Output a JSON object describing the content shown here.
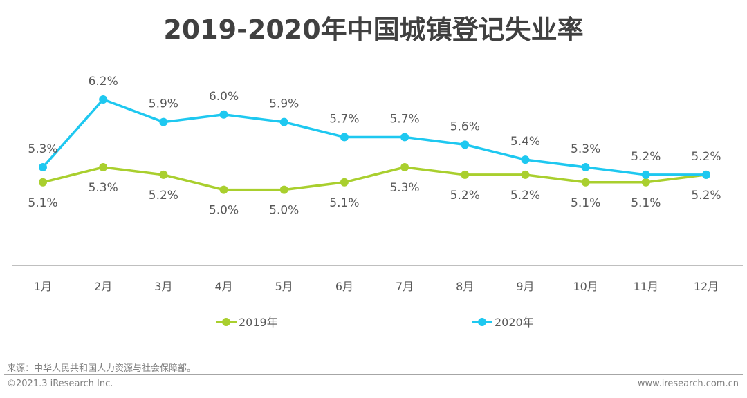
{
  "chart_data": {
    "type": "line",
    "title": "2019-2020年中国城镇登记失业率",
    "xlabel": "",
    "ylabel": "",
    "categories": [
      "1月",
      "2月",
      "3月",
      "4月",
      "5月",
      "6月",
      "7月",
      "8月",
      "9月",
      "10月",
      "11月",
      "12月"
    ],
    "series": [
      {
        "name": "2019年",
        "color": "#A9CF2E",
        "values": [
          5.1,
          5.3,
          5.2,
          5.0,
          5.0,
          5.1,
          5.3,
          5.2,
          5.2,
          5.1,
          5.1,
          5.2
        ],
        "label_position": "below"
      },
      {
        "name": "2020年",
        "color": "#1EC8F0",
        "values": [
          5.3,
          6.2,
          5.9,
          6.0,
          5.9,
          5.7,
          5.7,
          5.6,
          5.4,
          5.3,
          5.2,
          5.2
        ],
        "label_position": "above"
      }
    ],
    "value_suffix": "%",
    "grid": false,
    "legend": "bottom-center"
  },
  "footer": {
    "source": "来源：中华人民共和国人力资源与社会保障部。",
    "copyright": "©2021.3 iResearch Inc.",
    "website": "www.iresearch.com.cn"
  },
  "colors": {
    "axis": "#bfbfbf",
    "text": "#595959",
    "title": "#404040"
  }
}
